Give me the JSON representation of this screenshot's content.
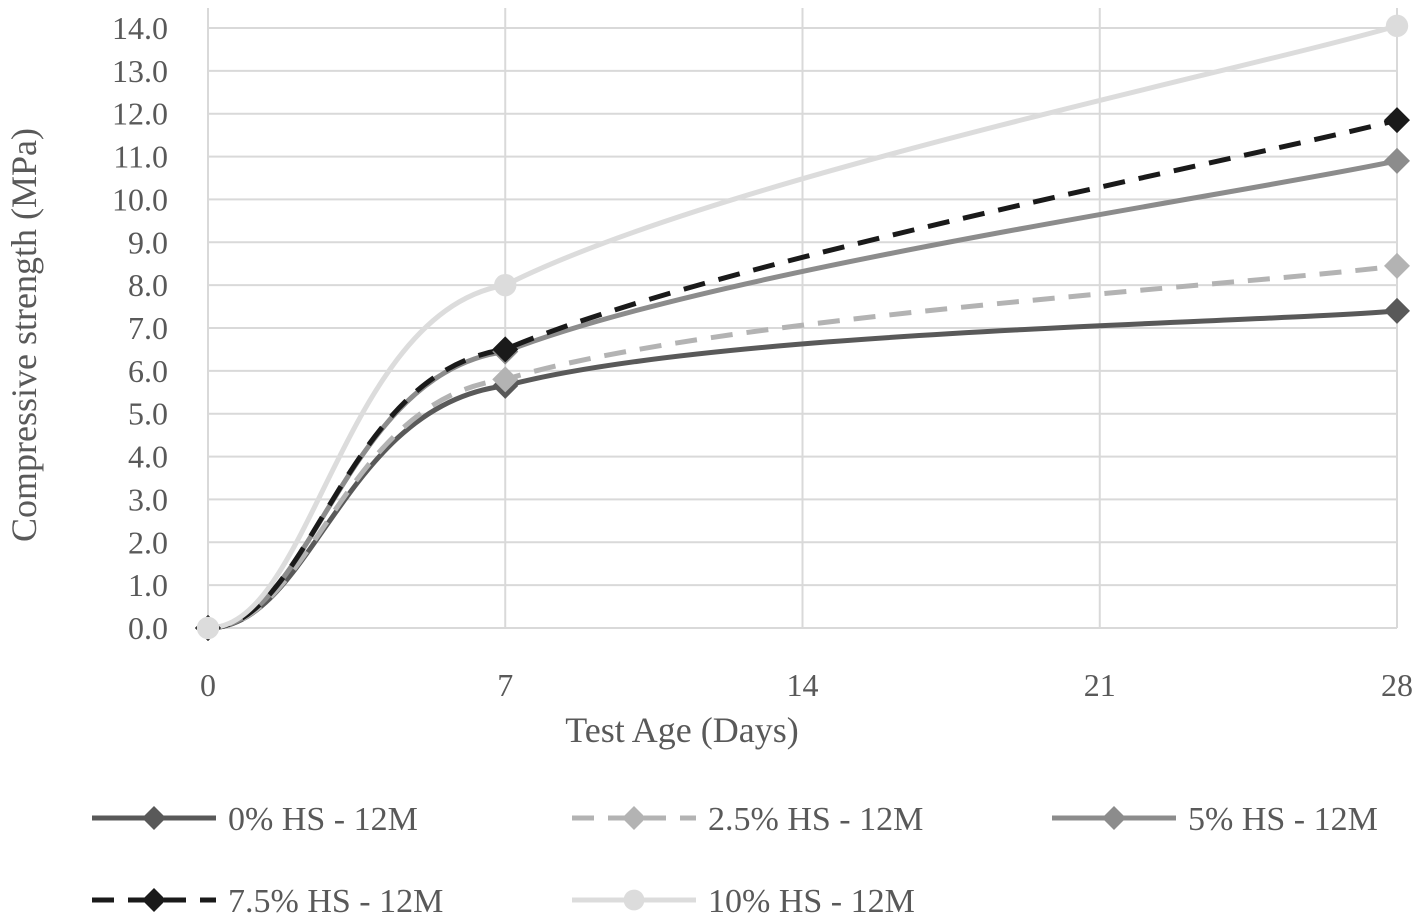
{
  "chart_data": {
    "type": "line",
    "title": "",
    "xlabel": "Test Age (Days)",
    "ylabel": "Compressive strength (MPa)",
    "x": [
      0,
      7,
      28
    ],
    "xticks": [
      "0",
      "7",
      "14",
      "21",
      "28"
    ],
    "xlim": [
      0,
      28
    ],
    "ylim": [
      0,
      14
    ],
    "yticks": [
      "0.0",
      "1.0",
      "2.0",
      "3.0",
      "4.0",
      "5.0",
      "6.0",
      "7.0",
      "8.0",
      "9.0",
      "10.0",
      "11.0",
      "12.0",
      "13.0",
      "14.0"
    ],
    "grid": true,
    "smooth": true,
    "legend_position": "bottom",
    "series": [
      {
        "name": "0% HS - 12M",
        "values": [
          0,
          5.65,
          7.4
        ],
        "color": "#595959",
        "dash": "solid",
        "marker": "diamond"
      },
      {
        "name": "2.5% HS - 12M",
        "values": [
          0,
          5.8,
          8.45
        ],
        "color": "#b3b3b3",
        "dash": "dashed",
        "marker": "diamond"
      },
      {
        "name": "5% HS - 12M",
        "values": [
          0,
          6.45,
          10.9
        ],
        "color": "#8c8c8c",
        "dash": "solid",
        "marker": "diamond"
      },
      {
        "name": "7.5% HS - 12M",
        "values": [
          0,
          6.5,
          11.85
        ],
        "color": "#1a1a1a",
        "dash": "dashed",
        "marker": "diamond"
      },
      {
        "name": "10% HS - 12M",
        "values": [
          0,
          8.0,
          14.05
        ],
        "color": "#dcdcdc",
        "dash": "solid",
        "marker": "circle"
      }
    ]
  }
}
